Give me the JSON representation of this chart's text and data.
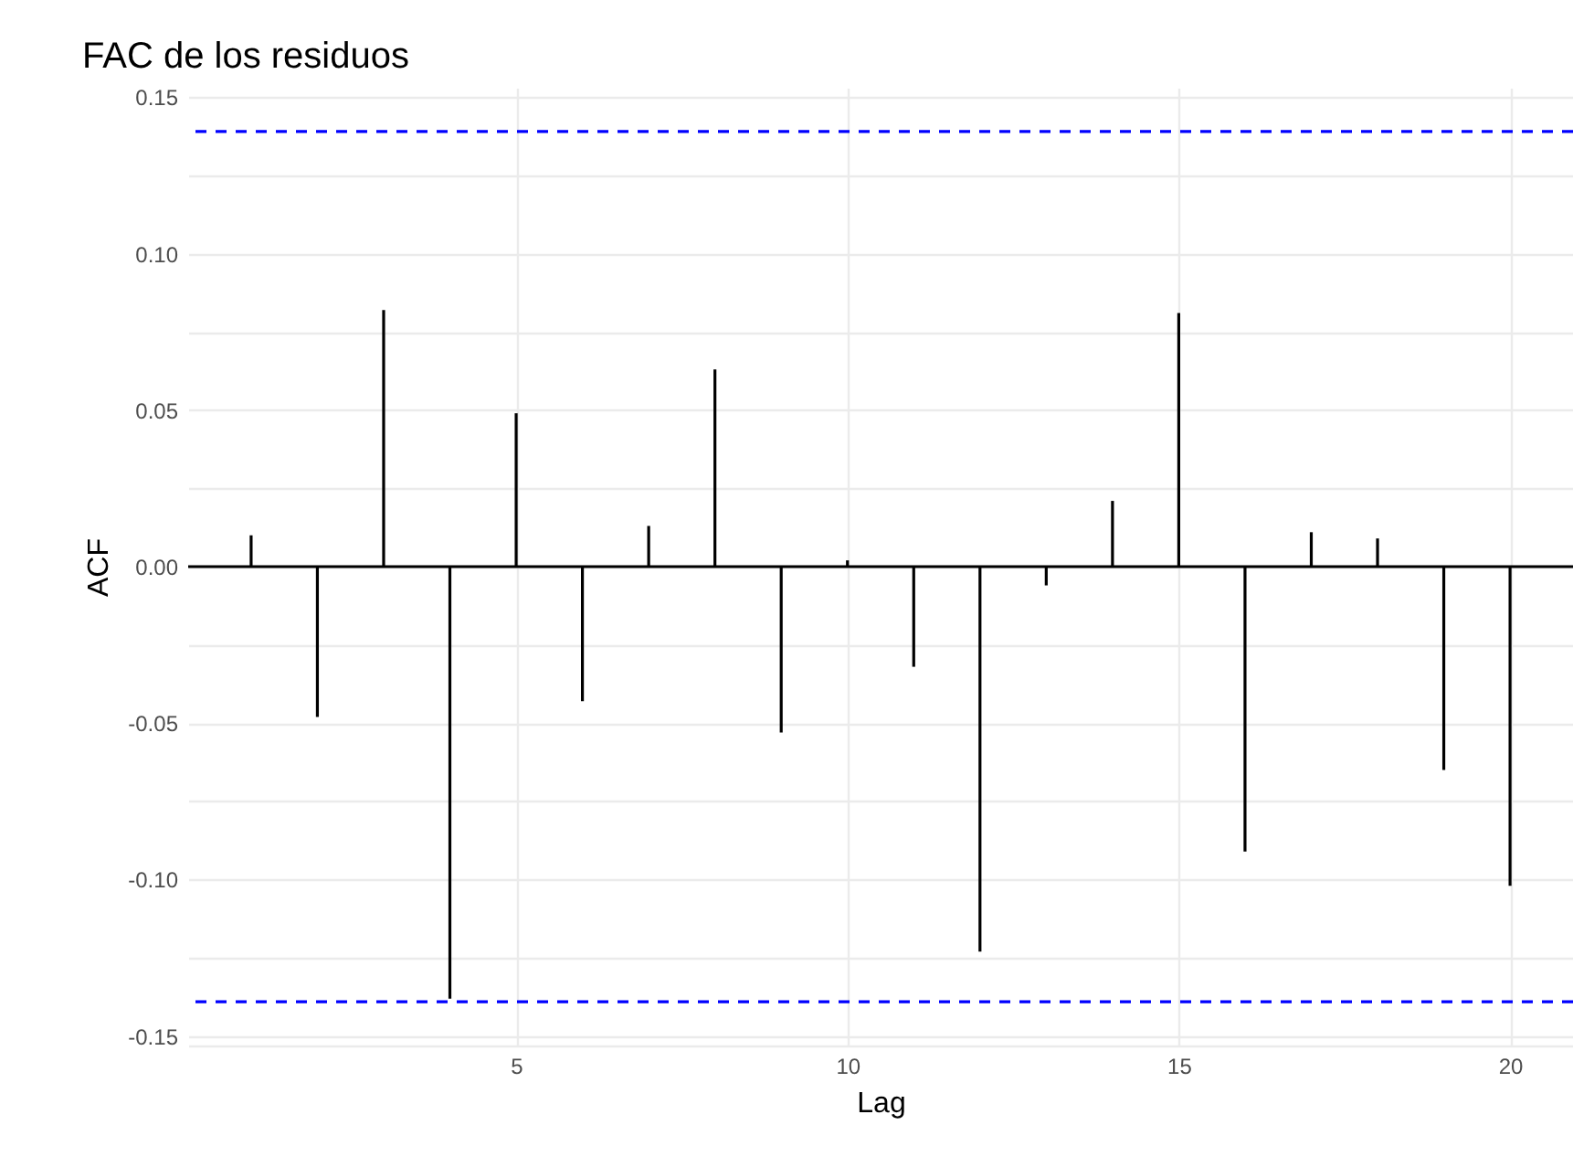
{
  "chart_data": {
    "type": "bar",
    "title": "FAC de los residuos",
    "xlabel": "Lag",
    "ylabel": "ACF",
    "x": [
      1,
      2,
      3,
      4,
      5,
      6,
      7,
      8,
      9,
      10,
      11,
      12,
      13,
      14,
      15,
      16,
      17,
      18,
      19,
      20
    ],
    "values": [
      0.01,
      -0.048,
      0.082,
      -0.138,
      0.049,
      -0.043,
      0.013,
      0.063,
      -0.053,
      0.002,
      -0.032,
      -0.123,
      -0.006,
      0.021,
      0.081,
      -0.091,
      0.011,
      0.009,
      -0.065,
      -0.102
    ],
    "color": "#000000",
    "xlim": [
      0.05,
      20.95
    ],
    "xticks": [
      5,
      10,
      15,
      20
    ],
    "ylim": [
      -0.153,
      0.153
    ],
    "yticks": [
      {
        "value": -0.15,
        "label": "-0.15"
      },
      {
        "value": -0.125,
        "label": null
      },
      {
        "value": -0.1,
        "label": "-0.10"
      },
      {
        "value": -0.075,
        "label": null
      },
      {
        "value": -0.05,
        "label": "-0.05"
      },
      {
        "value": -0.025,
        "label": null
      },
      {
        "value": 0,
        "label": "0.00"
      },
      {
        "value": 0.025,
        "label": null
      },
      {
        "value": 0.05,
        "label": "0.05"
      },
      {
        "value": 0.075,
        "label": null
      },
      {
        "value": 0.1,
        "label": "0.10"
      },
      {
        "value": 0.125,
        "label": null
      },
      {
        "value": 0.15,
        "label": "0.15"
      }
    ],
    "grid": true,
    "ref_lines": [
      {
        "axis": "y",
        "value": 0,
        "color": "#000000",
        "line_style": "solid"
      },
      {
        "axis": "y",
        "value": 0.139,
        "color": "#0000ff",
        "line_style": "dashed"
      },
      {
        "axis": "y",
        "value": -0.139,
        "color": "#0000ff",
        "line_style": "dashed"
      }
    ]
  }
}
